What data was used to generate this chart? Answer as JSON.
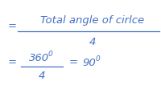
{
  "line1_eq": "=",
  "line1_numerator": "Total angle of cirlce",
  "line1_denominator": "4",
  "line2_eq": "=",
  "line2_numerator": "360",
  "line2_deg1": "0",
  "line2_denom": "4",
  "line2_result_eq": "=",
  "line2_result": "90",
  "line2_deg2": "0",
  "bg_color": "#ffffff",
  "text_color": "#4472c4",
  "fontsize_main": 9.5,
  "fontsize_sup": 6.5
}
